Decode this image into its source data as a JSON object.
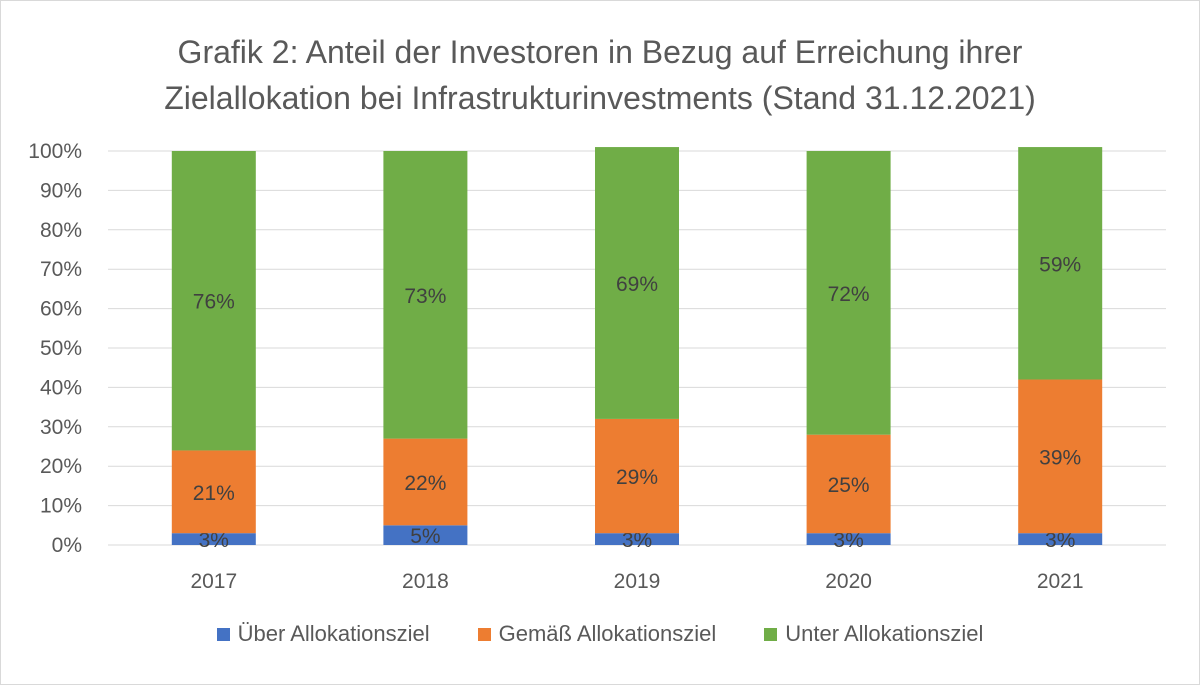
{
  "chart_data": {
    "type": "bar",
    "stacked": true,
    "title_lines": [
      "Grafik 2: Anteil der Investoren in Bezug auf Erreichung ihrer",
      "Zielallokation bei Infrastrukturinvestments (Stand 31.12.2021)"
    ],
    "categories": [
      "2017",
      "2018",
      "2019",
      "2020",
      "2021"
    ],
    "series": [
      {
        "name": "Über Allokationsziel",
        "color": "#4472c4",
        "values": [
          3,
          5,
          3,
          3,
          3
        ],
        "labels": [
          "3%",
          "5%",
          "3%",
          "3%",
          "3%"
        ]
      },
      {
        "name": "Gemäß Allokationsziel",
        "color": "#ed7d31",
        "values": [
          21,
          22,
          29,
          25,
          39
        ],
        "labels": [
          "21%",
          "22%",
          "29%",
          "25%",
          "39%"
        ]
      },
      {
        "name": "Unter Allokationsziel",
        "color": "#70ad47",
        "values": [
          76,
          73,
          69,
          72,
          59
        ],
        "labels": [
          "76%",
          "73%",
          "69%",
          "72%",
          "59%"
        ]
      }
    ],
    "y_ticks": [
      "0%",
      "10%",
      "20%",
      "30%",
      "40%",
      "50%",
      "60%",
      "70%",
      "80%",
      "90%",
      "100%"
    ],
    "ylim": [
      0,
      100
    ],
    "grid": true,
    "legend_position": "bottom"
  }
}
